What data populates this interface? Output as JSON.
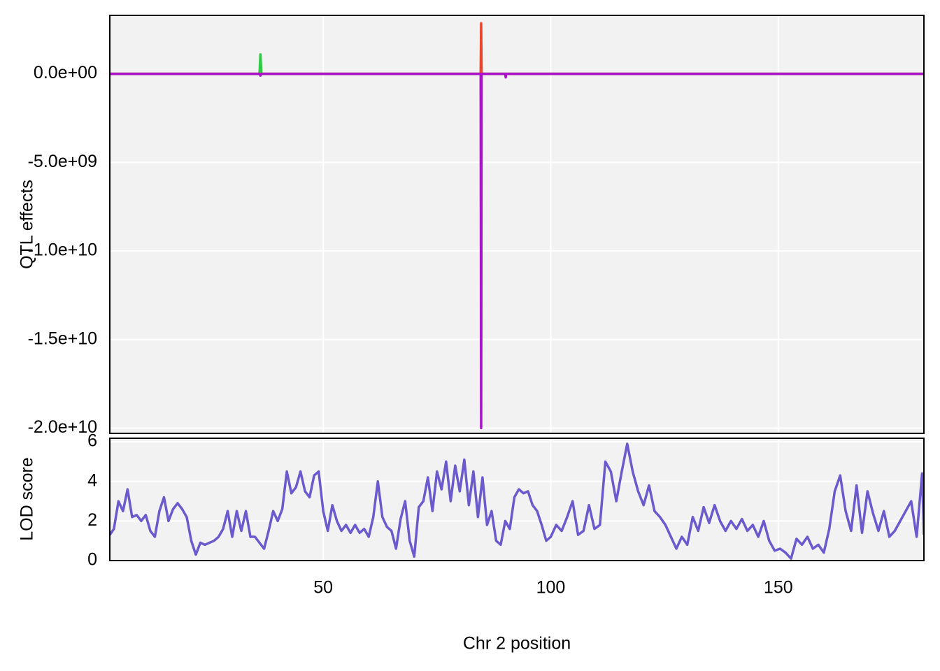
{
  "chart_data": [
    {
      "type": "line",
      "ylabel": "QTL effects",
      "x": [
        3.1,
        36.0,
        36.2,
        36.4,
        84.6,
        84.7,
        84.8,
        90.0,
        90.1,
        90.2,
        182
      ],
      "series": [
        {
          "color": "#2ecc40",
          "values": [
            0,
            0,
            1100000000,
            0,
            0,
            0,
            0,
            0,
            0,
            0,
            0
          ]
        },
        {
          "color": "#e8472f",
          "values": [
            0,
            0,
            0,
            0,
            0,
            2850000000,
            0,
            0,
            0,
            0,
            0
          ]
        },
        {
          "color": "#aa14c8",
          "values": [
            0,
            0,
            -100000000,
            0,
            0,
            -20000000000,
            0,
            0,
            -200000000,
            0,
            0
          ]
        }
      ],
      "xlim": [
        3.1,
        182
      ],
      "xticks": [
        50,
        100,
        150
      ],
      "ylim": [
        -20300000000,
        3300000000
      ],
      "yticks": [
        {
          "value": 0,
          "label": "0.0e+00"
        },
        {
          "value": -5000000000,
          "label": "-5.0e+09"
        },
        {
          "value": -10000000000,
          "label": "-1.0e+10"
        },
        {
          "value": -15000000000,
          "label": "-1.5e+10"
        },
        {
          "value": -20000000000,
          "label": "-2.0e+10"
        }
      ],
      "grid": true
    },
    {
      "type": "line",
      "xlabel": "Chr 2 position",
      "ylabel": "LOD score",
      "x": [
        3.1,
        4,
        5,
        6,
        7,
        8,
        9,
        10,
        11,
        12,
        13,
        14,
        15,
        16,
        17,
        18,
        19,
        20,
        21,
        22,
        23,
        24,
        26,
        27,
        28,
        29,
        30,
        31,
        32,
        33,
        34,
        35,
        36,
        37,
        38,
        39,
        40,
        41,
        42,
        43,
        44,
        45,
        46,
        47,
        48,
        49,
        50,
        51,
        52,
        53,
        54,
        55,
        56,
        57,
        58,
        59,
        60,
        61,
        62,
        63,
        64,
        65,
        66,
        67,
        68,
        69,
        70,
        71,
        72,
        73,
        74,
        75,
        76,
        77,
        78,
        79,
        80,
        81,
        82,
        83,
        84,
        85,
        86,
        87,
        88,
        89,
        90,
        91,
        92,
        93,
        94,
        95,
        96,
        97,
        98,
        99,
        100,
        101.2,
        102.4,
        103.6,
        104.8,
        106,
        107.2,
        108.4,
        109.6,
        110.8,
        112,
        113.2,
        114.4,
        115.6,
        116.8,
        118,
        119.2,
        120.4,
        121.6,
        122.8,
        124,
        125.2,
        126.4,
        127.6,
        128.8,
        130,
        131.2,
        132.4,
        133.6,
        134.8,
        136,
        137.2,
        138.4,
        139.6,
        140.8,
        142,
        143.2,
        144.4,
        145.6,
        146.8,
        148,
        149.2,
        150.4,
        151.6,
        152.8,
        154,
        155.2,
        156.4,
        157.6,
        158.8,
        160,
        161.2,
        162.4,
        163.6,
        164.8,
        166,
        167.2,
        168.4,
        169.6,
        170.8,
        172,
        173.2,
        174.4,
        175.6,
        179.2,
        180.4,
        181.6,
        182
      ],
      "series": [
        {
          "color": "#6a5acd",
          "values": [
            1.3,
            1.6,
            3.0,
            2.5,
            3.6,
            2.2,
            2.3,
            2.0,
            2.3,
            1.5,
            1.2,
            2.5,
            3.2,
            2.0,
            2.6,
            2.9,
            2.6,
            2.2,
            1.0,
            0.3,
            0.9,
            0.8,
            1.0,
            1.2,
            1.6,
            2.5,
            1.2,
            2.5,
            1.5,
            2.5,
            1.2,
            1.2,
            0.9,
            0.6,
            1.5,
            2.5,
            2.0,
            2.6,
            4.5,
            3.4,
            3.7,
            4.5,
            3.5,
            3.2,
            4.3,
            4.5,
            2.5,
            1.5,
            2.8,
            2.0,
            1.5,
            1.8,
            1.4,
            1.8,
            1.4,
            1.6,
            1.2,
            2.2,
            4.0,
            2.2,
            1.7,
            1.5,
            0.6,
            2.1,
            3.0,
            1.0,
            0.2,
            2.7,
            3.0,
            4.2,
            2.5,
            4.5,
            3.6,
            5.0,
            3.0,
            4.8,
            3.5,
            5.1,
            2.8,
            4.5,
            2.2,
            4.2,
            1.8,
            2.5,
            1.0,
            0.8,
            2.0,
            1.6,
            3.2,
            3.6,
            3.4,
            3.5,
            2.8,
            2.5,
            1.8,
            1.0,
            1.2,
            1.8,
            1.5,
            2.2,
            3.0,
            1.3,
            1.5,
            2.8,
            1.6,
            1.8,
            5.0,
            4.5,
            3.0,
            4.5,
            5.9,
            4.5,
            3.5,
            2.8,
            3.8,
            2.5,
            2.2,
            1.8,
            1.2,
            0.6,
            1.2,
            0.8,
            2.2,
            1.5,
            2.7,
            1.9,
            2.8,
            2.0,
            1.5,
            2.0,
            1.6,
            2.1,
            1.5,
            1.8,
            1.2,
            2.0,
            1.0,
            0.5,
            0.6,
            0.4,
            0.1,
            1.1,
            0.8,
            1.2,
            0.6,
            0.8,
            0.4,
            1.6,
            3.5,
            4.3,
            2.5,
            1.5,
            3.8,
            1.4,
            3.5,
            2.4,
            1.5,
            2.5,
            1.2,
            1.5,
            3.0,
            1.2,
            4.4,
            1.3
          ]
        }
      ],
      "xlim": [
        3.1,
        182
      ],
      "xticks": [
        50,
        100,
        150
      ],
      "ylim": [
        0,
        6.18
      ],
      "yticks": [
        0,
        2,
        4,
        6
      ],
      "grid": true
    }
  ]
}
